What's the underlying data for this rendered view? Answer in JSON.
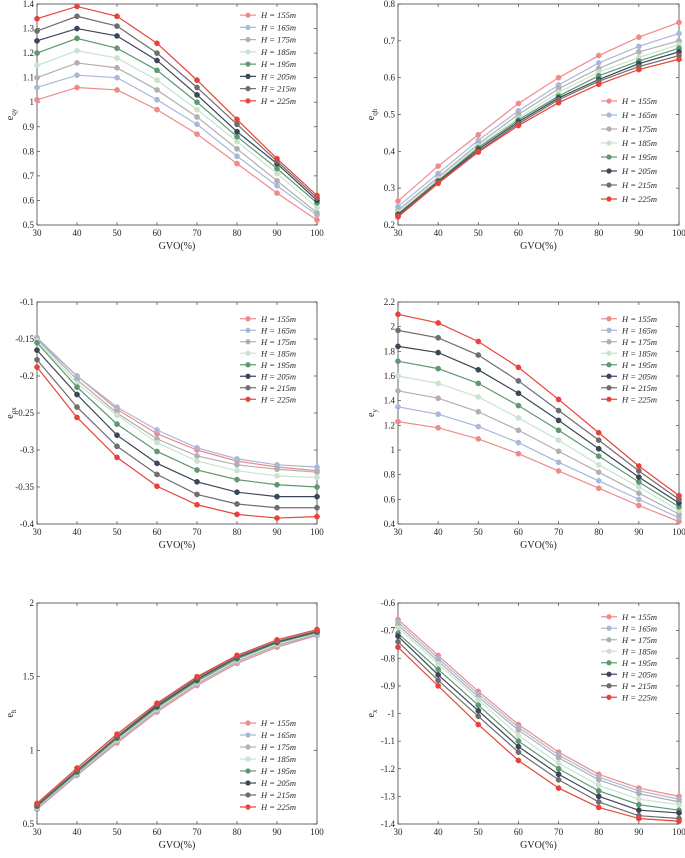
{
  "legend_labels": [
    "H = 155m",
    "H = 165m",
    "H = 175m",
    "H = 185m",
    "H = 195m",
    "H = 205m",
    "H = 215m",
    "H = 225m"
  ],
  "series_colors": [
    "#F08A8A",
    "#A9B8DA",
    "#B0B0B0",
    "#C9E3D0",
    "#5E9870",
    "#3B4656",
    "#6E6E6E",
    "#E8433A"
  ],
  "chart_data": [
    {
      "type": "line",
      "xlabel": "GVO(%)",
      "ylabel": "e_qy",
      "x": [
        30,
        40,
        50,
        60,
        70,
        80,
        90,
        100
      ],
      "xlim": [
        30,
        100
      ],
      "ylim": [
        0.5,
        1.4
      ],
      "yticks": [
        0.5,
        0.6,
        0.7,
        0.8,
        0.9,
        1.0,
        1.1,
        1.2,
        1.3,
        1.4
      ],
      "ytick_labels": [
        "0.5",
        "0.6",
        "0.7",
        "0.8",
        "0.9",
        "1",
        "1.1",
        "1.2",
        "1.3",
        "1.4"
      ],
      "xticks": [
        30,
        40,
        50,
        60,
        70,
        80,
        90,
        100
      ],
      "legend": "top-right",
      "series": [
        {
          "name": "H = 155m",
          "values": [
            1.01,
            1.06,
            1.05,
            0.97,
            0.87,
            0.75,
            0.63,
            0.52
          ]
        },
        {
          "name": "H = 165m",
          "values": [
            1.06,
            1.11,
            1.1,
            1.01,
            0.91,
            0.78,
            0.66,
            0.54
          ]
        },
        {
          "name": "H = 175m",
          "values": [
            1.1,
            1.16,
            1.14,
            1.05,
            0.94,
            0.81,
            0.68,
            0.55
          ]
        },
        {
          "name": "H = 185m",
          "values": [
            1.15,
            1.21,
            1.18,
            1.09,
            0.97,
            0.84,
            0.71,
            0.57
          ]
        },
        {
          "name": "H = 195m",
          "values": [
            1.2,
            1.26,
            1.22,
            1.13,
            1.0,
            0.86,
            0.73,
            0.59
          ]
        },
        {
          "name": "H = 205m",
          "values": [
            1.25,
            1.3,
            1.27,
            1.17,
            1.03,
            0.88,
            0.75,
            0.6
          ]
        },
        {
          "name": "H = 215m",
          "values": [
            1.29,
            1.35,
            1.31,
            1.2,
            1.06,
            0.91,
            0.76,
            0.61
          ]
        },
        {
          "name": "H = 225m",
          "values": [
            1.34,
            1.39,
            1.35,
            1.24,
            1.09,
            0.93,
            0.77,
            0.62
          ]
        }
      ]
    },
    {
      "type": "line",
      "xlabel": "GVO(%)",
      "ylabel": "e_qh",
      "x": [
        30,
        40,
        50,
        60,
        70,
        80,
        90,
        100
      ],
      "xlim": [
        30,
        100
      ],
      "ylim": [
        0.2,
        0.8
      ],
      "yticks": [
        0.2,
        0.3,
        0.4,
        0.5,
        0.6,
        0.7,
        0.8
      ],
      "ytick_labels": [
        "0.2",
        "0.3",
        "0.4",
        "0.5",
        "0.6",
        "0.7",
        "0.8"
      ],
      "xticks": [
        30,
        40,
        50,
        60,
        70,
        80,
        90,
        100
      ],
      "legend": "center-right",
      "series": [
        {
          "name": "H = 155m",
          "values": [
            0.265,
            0.36,
            0.445,
            0.53,
            0.6,
            0.66,
            0.71,
            0.75
          ]
        },
        {
          "name": "H = 165m",
          "values": [
            0.25,
            0.34,
            0.43,
            0.51,
            0.58,
            0.64,
            0.685,
            0.72
          ]
        },
        {
          "name": "H = 175m",
          "values": [
            0.24,
            0.33,
            0.42,
            0.5,
            0.57,
            0.625,
            0.67,
            0.7
          ]
        },
        {
          "name": "H = 185m",
          "values": [
            0.235,
            0.325,
            0.415,
            0.49,
            0.56,
            0.615,
            0.655,
            0.69
          ]
        },
        {
          "name": "H = 195m",
          "values": [
            0.23,
            0.32,
            0.41,
            0.485,
            0.55,
            0.605,
            0.645,
            0.68
          ]
        },
        {
          "name": "H = 205m",
          "values": [
            0.228,
            0.318,
            0.405,
            0.48,
            0.545,
            0.595,
            0.638,
            0.67
          ]
        },
        {
          "name": "H = 215m",
          "values": [
            0.225,
            0.316,
            0.4,
            0.475,
            0.54,
            0.59,
            0.63,
            0.66
          ]
        },
        {
          "name": "H = 225m",
          "values": [
            0.222,
            0.313,
            0.398,
            0.47,
            0.532,
            0.582,
            0.622,
            0.65
          ]
        }
      ]
    },
    {
      "type": "line",
      "xlabel": "GVO(%)",
      "ylabel": "e_qx",
      "x": [
        30,
        40,
        50,
        60,
        70,
        80,
        90,
        100
      ],
      "xlim": [
        30,
        100
      ],
      "ylim": [
        -0.4,
        -0.1
      ],
      "yticks": [
        -0.4,
        -0.35,
        -0.3,
        -0.25,
        -0.2,
        -0.15,
        -0.1
      ],
      "ytick_labels": [
        "-0.4",
        "-0.35",
        "-0.3",
        "-0.25",
        "-0.2",
        "-0.15",
        "-0.1"
      ],
      "xticks": [
        30,
        40,
        50,
        60,
        70,
        80,
        90,
        100
      ],
      "legend": "top-right",
      "series": [
        {
          "name": "H = 155m",
          "values": [
            -0.15,
            -0.2,
            -0.245,
            -0.278,
            -0.3,
            -0.315,
            -0.323,
            -0.328
          ]
        },
        {
          "name": "H = 165m",
          "values": [
            -0.148,
            -0.2,
            -0.242,
            -0.273,
            -0.297,
            -0.312,
            -0.32,
            -0.323
          ]
        },
        {
          "name": "H = 175m",
          "values": [
            -0.15,
            -0.205,
            -0.25,
            -0.285,
            -0.308,
            -0.32,
            -0.326,
            -0.33
          ]
        },
        {
          "name": "H = 185m",
          "values": [
            -0.152,
            -0.21,
            -0.253,
            -0.29,
            -0.315,
            -0.328,
            -0.335,
            -0.337
          ]
        },
        {
          "name": "H = 195m",
          "values": [
            -0.155,
            -0.215,
            -0.265,
            -0.302,
            -0.327,
            -0.34,
            -0.347,
            -0.35
          ]
        },
        {
          "name": "H = 205m",
          "values": [
            -0.165,
            -0.225,
            -0.28,
            -0.318,
            -0.343,
            -0.357,
            -0.363,
            -0.363
          ]
        },
        {
          "name": "H = 215m",
          "values": [
            -0.178,
            -0.242,
            -0.295,
            -0.333,
            -0.36,
            -0.373,
            -0.378,
            -0.378
          ]
        },
        {
          "name": "H = 225m",
          "values": [
            -0.188,
            -0.256,
            -0.31,
            -0.349,
            -0.374,
            -0.387,
            -0.392,
            -0.39
          ]
        }
      ]
    },
    {
      "type": "line",
      "xlabel": "GVO(%)",
      "ylabel": "e_y",
      "x": [
        30,
        40,
        50,
        60,
        70,
        80,
        90,
        100
      ],
      "xlim": [
        30,
        100
      ],
      "ylim": [
        0.4,
        2.2
      ],
      "yticks": [
        0.4,
        0.6,
        0.8,
        1.0,
        1.2,
        1.4,
        1.6,
        1.8,
        2.0,
        2.2
      ],
      "ytick_labels": [
        "0.4",
        "0.6",
        "0.8",
        "1",
        "1.2",
        "1.4",
        "1.6",
        "1.8",
        "2",
        "2.2"
      ],
      "xticks": [
        30,
        40,
        50,
        60,
        70,
        80,
        90,
        100
      ],
      "legend": "top-right",
      "series": [
        {
          "name": "H = 155m",
          "values": [
            1.23,
            1.18,
            1.09,
            0.97,
            0.83,
            0.69,
            0.55,
            0.42
          ]
        },
        {
          "name": "H = 165m",
          "values": [
            1.35,
            1.29,
            1.19,
            1.06,
            0.9,
            0.75,
            0.6,
            0.45
          ]
        },
        {
          "name": "H = 175m",
          "values": [
            1.48,
            1.42,
            1.31,
            1.16,
            0.99,
            0.82,
            0.65,
            0.48
          ]
        },
        {
          "name": "H = 185m",
          "values": [
            1.6,
            1.54,
            1.43,
            1.26,
            1.08,
            0.88,
            0.7,
            0.51
          ]
        },
        {
          "name": "H = 195m",
          "values": [
            1.72,
            1.66,
            1.54,
            1.36,
            1.16,
            0.95,
            0.74,
            0.54
          ]
        },
        {
          "name": "H = 205m",
          "values": [
            1.84,
            1.79,
            1.65,
            1.46,
            1.24,
            1.01,
            0.78,
            0.57
          ]
        },
        {
          "name": "H = 215m",
          "values": [
            1.97,
            1.91,
            1.77,
            1.56,
            1.32,
            1.08,
            0.83,
            0.6
          ]
        },
        {
          "name": "H = 225m",
          "values": [
            2.1,
            2.03,
            1.88,
            1.67,
            1.41,
            1.14,
            0.87,
            0.63
          ]
        }
      ]
    },
    {
      "type": "line",
      "xlabel": "GVO(%)",
      "ylabel": "e_h",
      "x": [
        30,
        40,
        50,
        60,
        70,
        80,
        90,
        100
      ],
      "xlim": [
        30,
        100
      ],
      "ylim": [
        0.5,
        2.0
      ],
      "yticks": [
        0.5,
        1.0,
        1.5,
        2.0
      ],
      "ytick_labels": [
        "0.5",
        "1",
        "1.5",
        "2"
      ],
      "xticks": [
        30,
        40,
        50,
        60,
        70,
        80,
        90,
        100
      ],
      "legend": "bottom-right",
      "series": [
        {
          "name": "H = 155m",
          "values": [
            0.6,
            0.83,
            1.05,
            1.26,
            1.44,
            1.59,
            1.7,
            1.78
          ]
        },
        {
          "name": "H = 165m",
          "values": [
            0.605,
            0.835,
            1.06,
            1.27,
            1.45,
            1.6,
            1.71,
            1.785
          ]
        },
        {
          "name": "H = 175m",
          "values": [
            0.61,
            0.84,
            1.065,
            1.275,
            1.455,
            1.605,
            1.715,
            1.79
          ]
        },
        {
          "name": "H = 185m",
          "values": [
            0.615,
            0.845,
            1.07,
            1.28,
            1.46,
            1.61,
            1.72,
            1.795
          ]
        },
        {
          "name": "H = 195m",
          "values": [
            0.62,
            0.85,
            1.08,
            1.29,
            1.47,
            1.62,
            1.73,
            1.8
          ]
        },
        {
          "name": "H = 205m",
          "values": [
            0.625,
            0.86,
            1.09,
            1.3,
            1.48,
            1.63,
            1.735,
            1.805
          ]
        },
        {
          "name": "H = 215m",
          "values": [
            0.63,
            0.865,
            1.095,
            1.31,
            1.49,
            1.635,
            1.74,
            1.81
          ]
        },
        {
          "name": "H = 225m",
          "values": [
            0.64,
            0.88,
            1.11,
            1.32,
            1.5,
            1.645,
            1.75,
            1.82
          ]
        }
      ]
    },
    {
      "type": "line",
      "xlabel": "GVO(%)",
      "ylabel": "e_x",
      "x": [
        30,
        40,
        50,
        60,
        70,
        80,
        90,
        100
      ],
      "xlim": [
        30,
        100
      ],
      "ylim": [
        -1.4,
        -0.6
      ],
      "yticks": [
        -1.4,
        -1.3,
        -1.2,
        -1.1,
        -1.0,
        -0.9,
        -0.8,
        -0.7,
        -0.6
      ],
      "ytick_labels": [
        "-1.4",
        "-1.3",
        "-1.2",
        "-1.1",
        "-1",
        "-0.9",
        "-0.8",
        "-0.7",
        "-0.6"
      ],
      "xticks": [
        30,
        40,
        50,
        60,
        70,
        80,
        90,
        100
      ],
      "legend": "top-right",
      "series": [
        {
          "name": "H = 155m",
          "values": [
            -0.66,
            -0.79,
            -0.92,
            -1.04,
            -1.14,
            -1.22,
            -1.27,
            -1.3
          ]
        },
        {
          "name": "H = 165m",
          "values": [
            -0.67,
            -0.8,
            -0.93,
            -1.05,
            -1.15,
            -1.23,
            -1.28,
            -1.31
          ]
        },
        {
          "name": "H = 175m",
          "values": [
            -0.68,
            -0.81,
            -0.94,
            -1.06,
            -1.16,
            -1.24,
            -1.29,
            -1.32
          ]
        },
        {
          "name": "H = 185m",
          "values": [
            -0.69,
            -0.82,
            -0.95,
            -1.08,
            -1.18,
            -1.26,
            -1.31,
            -1.33
          ]
        },
        {
          "name": "H = 195m",
          "values": [
            -0.71,
            -0.84,
            -0.97,
            -1.1,
            -1.2,
            -1.28,
            -1.33,
            -1.35
          ]
        },
        {
          "name": "H = 205m",
          "values": [
            -0.72,
            -0.86,
            -0.99,
            -1.12,
            -1.22,
            -1.3,
            -1.35,
            -1.36
          ]
        },
        {
          "name": "H = 215m",
          "values": [
            -0.74,
            -0.88,
            -1.01,
            -1.14,
            -1.24,
            -1.32,
            -1.37,
            -1.38
          ]
        },
        {
          "name": "H = 225m",
          "values": [
            -0.76,
            -0.9,
            -1.04,
            -1.17,
            -1.27,
            -1.34,
            -1.38,
            -1.39
          ]
        }
      ]
    }
  ]
}
